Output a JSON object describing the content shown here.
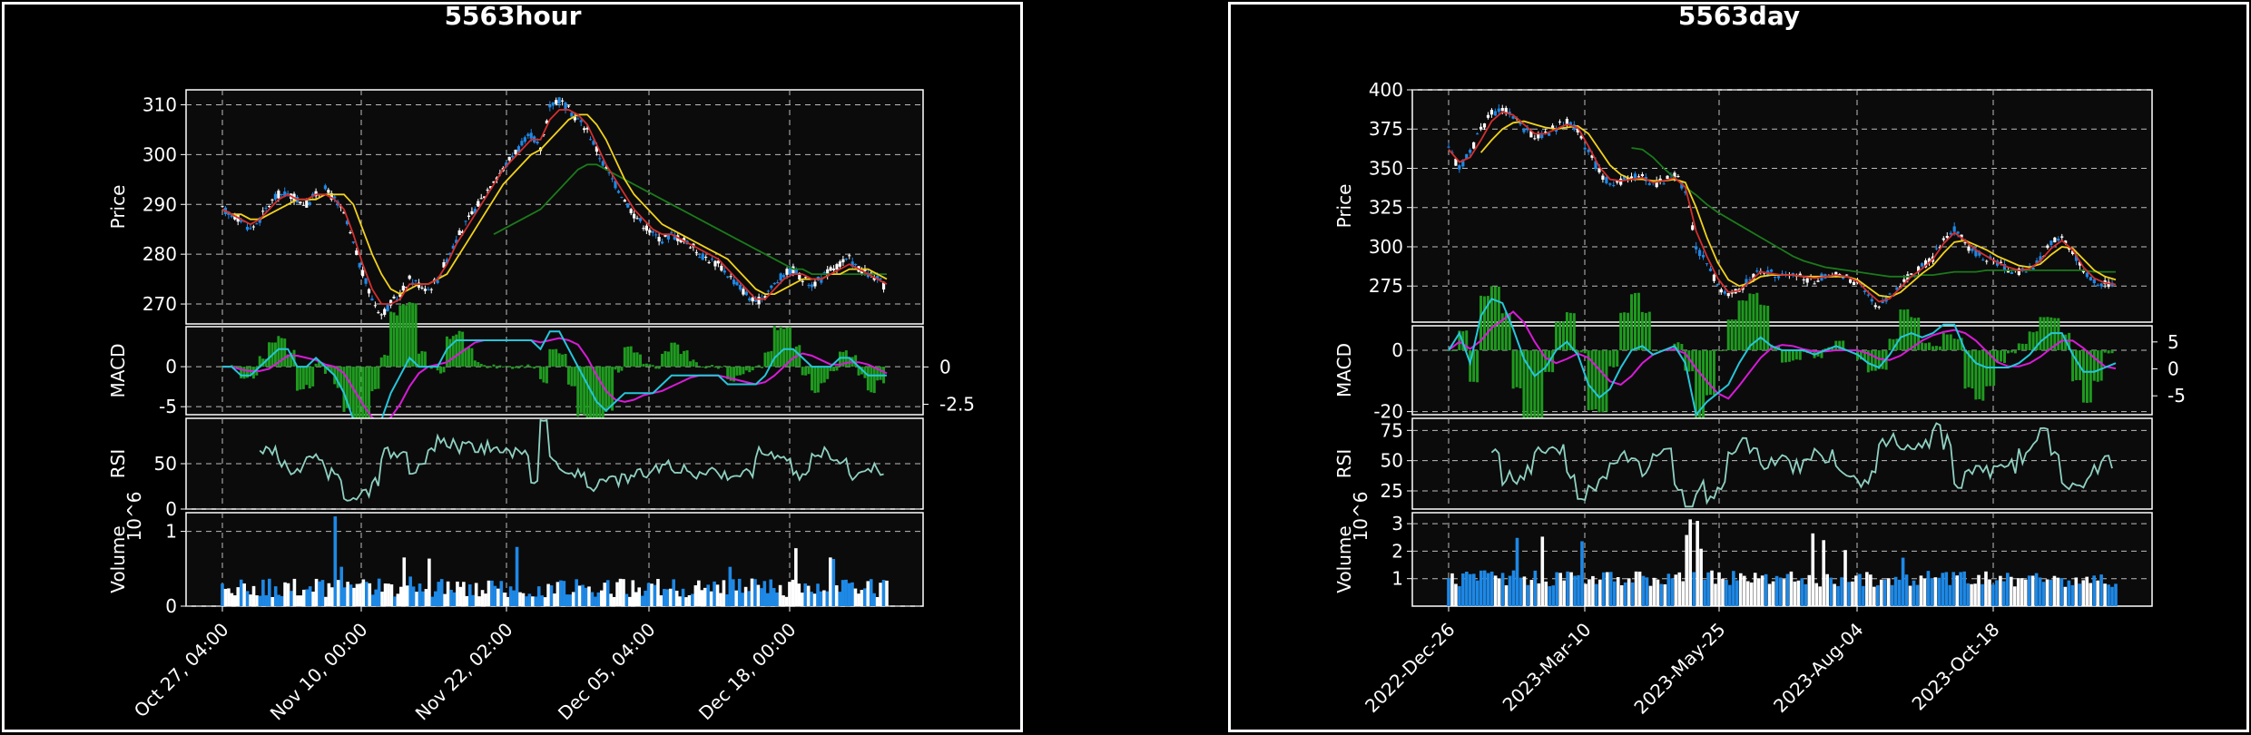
{
  "charts": [
    {
      "id": "hour",
      "title": "5563hour",
      "chart_data": {
        "type": "candlestick",
        "title": "5563hour",
        "x_tick_labels": [
          "Oct 27, 04:00",
          "Nov 10, 00:00",
          "Nov 22, 02:00",
          "Dec 05, 04:00",
          "Dec 18, 00:00"
        ],
        "price": {
          "ylabel": "Price",
          "yticks": [
            270,
            280,
            290,
            300,
            310
          ],
          "ylim": [
            266,
            313
          ],
          "close": [
            289,
            288,
            287,
            285,
            287,
            290,
            292,
            292,
            291,
            290,
            292,
            293,
            291,
            288,
            282,
            276,
            271,
            268,
            270,
            272,
            275,
            274,
            273,
            275,
            279,
            283,
            286,
            289,
            292,
            295,
            297,
            300,
            302,
            304,
            301,
            310,
            311,
            309,
            307,
            305,
            301,
            297,
            294,
            291,
            288,
            286,
            284,
            283,
            284,
            283,
            282,
            280,
            279,
            278,
            276,
            274,
            272,
            270,
            272,
            274,
            276,
            277,
            275,
            274,
            275,
            277,
            278,
            279,
            277,
            276,
            275,
            273
          ],
          "ma_red": [
            289,
            288,
            287,
            286,
            287,
            289,
            291,
            292,
            291,
            291,
            292,
            292,
            291,
            289,
            284,
            278,
            273,
            270,
            270,
            271,
            274,
            274,
            274,
            275,
            278,
            282,
            285,
            288,
            291,
            294,
            297,
            299,
            301,
            303,
            303,
            307,
            309,
            309,
            308,
            306,
            302,
            298,
            295,
            292,
            289,
            287,
            285,
            284,
            284,
            283,
            282,
            281,
            280,
            279,
            277,
            275,
            273,
            271,
            271,
            273,
            275,
            276,
            276,
            275,
            275,
            276,
            277,
            278,
            277,
            276,
            275,
            274
          ],
          "ma_yellow": [
            289,
            288,
            288,
            287,
            287,
            288,
            289,
            290,
            291,
            291,
            291,
            292,
            292,
            292,
            290,
            285,
            280,
            276,
            273,
            272,
            273,
            274,
            274,
            275,
            276,
            279,
            282,
            285,
            288,
            291,
            294,
            296,
            298,
            300,
            301,
            303,
            305,
            307,
            308,
            308,
            306,
            303,
            299,
            295,
            292,
            290,
            288,
            286,
            285,
            284,
            283,
            282,
            281,
            280,
            279,
            277,
            275,
            273,
            272,
            272,
            273,
            274,
            275,
            275,
            275,
            276,
            276,
            277,
            277,
            277,
            276,
            275
          ],
          "ma_green": [
            null,
            null,
            null,
            null,
            null,
            null,
            null,
            null,
            null,
            null,
            null,
            null,
            null,
            null,
            null,
            null,
            null,
            null,
            null,
            null,
            null,
            null,
            null,
            null,
            null,
            null,
            null,
            null,
            null,
            284,
            285,
            286,
            287,
            288,
            289,
            291,
            293,
            295,
            297,
            298,
            298,
            297,
            296,
            295,
            294,
            293,
            292,
            291,
            290,
            289,
            288,
            287,
            286,
            285,
            284,
            283,
            282,
            281,
            280,
            279,
            278,
            277,
            277,
            276,
            276,
            276,
            276,
            276,
            276,
            276,
            276,
            276
          ]
        },
        "macd": {
          "ylabel": "MACD",
          "left_ticks": [
            0,
            -5
          ],
          "right_ticks": [
            0.0,
            -2.5
          ],
          "ylim": [
            -6,
            5
          ]
        },
        "rsi": {
          "ylabel": "RSI",
          "yticks": [
            0,
            50
          ],
          "ylim": [
            0,
            100
          ]
        },
        "volume": {
          "ylabel": "Volume",
          "exponent": "10^6",
          "yticks": [
            0,
            1
          ],
          "ylim": [
            0,
            1.25
          ]
        }
      }
    },
    {
      "id": "day",
      "title": "5563day",
      "chart_data": {
        "type": "candlestick",
        "title": "5563day",
        "x_tick_labels": [
          "2022-Dec-26",
          "2023-Mar-10",
          "2023-May-25",
          "2023-Aug-04",
          "2023-Oct-18"
        ],
        "price": {
          "ylabel": "Price",
          "yticks": [
            275,
            300,
            325,
            350,
            375,
            400
          ],
          "ylim": [
            252,
            400
          ],
          "close": [
            362,
            350,
            360,
            375,
            385,
            388,
            382,
            375,
            370,
            372,
            376,
            380,
            374,
            360,
            348,
            340,
            342,
            344,
            345,
            340,
            342,
            346,
            336,
            300,
            290,
            276,
            268,
            272,
            280,
            285,
            283,
            281,
            282,
            280,
            279,
            281,
            283,
            280,
            277,
            268,
            262,
            268,
            276,
            282,
            287,
            293,
            305,
            312,
            302,
            296,
            293,
            289,
            286,
            284,
            286,
            292,
            302,
            306,
            296,
            285,
            278,
            276,
            275
          ],
          "ma_red": [
            362,
            354,
            357,
            368,
            380,
            386,
            384,
            378,
            372,
            372,
            375,
            378,
            376,
            364,
            351,
            343,
            342,
            343,
            344,
            341,
            342,
            344,
            338,
            310,
            294,
            280,
            271,
            272,
            278,
            284,
            283,
            282,
            282,
            281,
            280,
            281,
            282,
            281,
            278,
            271,
            265,
            267,
            274,
            281,
            286,
            292,
            302,
            309,
            304,
            298,
            294,
            290,
            287,
            285,
            286,
            291,
            299,
            304,
            298,
            287,
            280,
            277,
            276
          ],
          "ma_yellow": [
            null,
            null,
            null,
            360,
            368,
            375,
            379,
            380,
            378,
            376,
            375,
            376,
            377,
            372,
            362,
            352,
            346,
            343,
            343,
            342,
            342,
            343,
            341,
            325,
            306,
            290,
            279,
            275,
            277,
            281,
            282,
            282,
            282,
            281,
            281,
            281,
            281,
            281,
            279,
            274,
            269,
            268,
            271,
            277,
            283,
            288,
            296,
            303,
            304,
            301,
            298,
            294,
            291,
            288,
            287,
            289,
            295,
            300,
            299,
            292,
            285,
            281,
            279
          ],
          "ma_green": [
            null,
            null,
            null,
            null,
            null,
            null,
            null,
            null,
            null,
            null,
            null,
            null,
            null,
            null,
            null,
            null,
            null,
            363,
            362,
            357,
            350,
            344,
            338,
            333,
            327,
            322,
            318,
            314,
            310,
            306,
            302,
            298,
            294,
            291,
            289,
            287,
            286,
            285,
            284,
            283,
            282,
            281,
            281,
            281,
            282,
            282,
            283,
            284,
            284,
            284,
            285,
            285,
            285,
            285,
            285,
            285,
            285,
            285,
            285,
            285,
            284,
            284,
            284
          ]
        },
        "macd": {
          "ylabel": "MACD",
          "left_ticks": [
            0,
            -20
          ],
          "right_ticks": [
            5,
            0,
            -5
          ],
          "ylim": [
            -21,
            8
          ]
        },
        "rsi": {
          "ylabel": "RSI",
          "yticks": [
            25,
            50,
            75
          ],
          "ylim": [
            10,
            85
          ]
        },
        "volume": {
          "ylabel": "Volume",
          "exponent": "10^6",
          "yticks": [
            1,
            2,
            3
          ],
          "ylim": [
            0,
            3.4
          ]
        }
      }
    }
  ],
  "colors": {
    "background": "#000000",
    "axes_bg": "#0b0b0b",
    "grid": "#bdbdbd",
    "up": "#ffffff",
    "down": "#1e88e5",
    "ma_red": "#d32f2f",
    "ma_yellow": "#f2d21b",
    "ma_green": "#1b7a1b",
    "macd_line": "#26c6da",
    "signal_line": "#d81bd8",
    "hist": "#1f9a1f",
    "rsi_line": "#8fd1c2"
  }
}
